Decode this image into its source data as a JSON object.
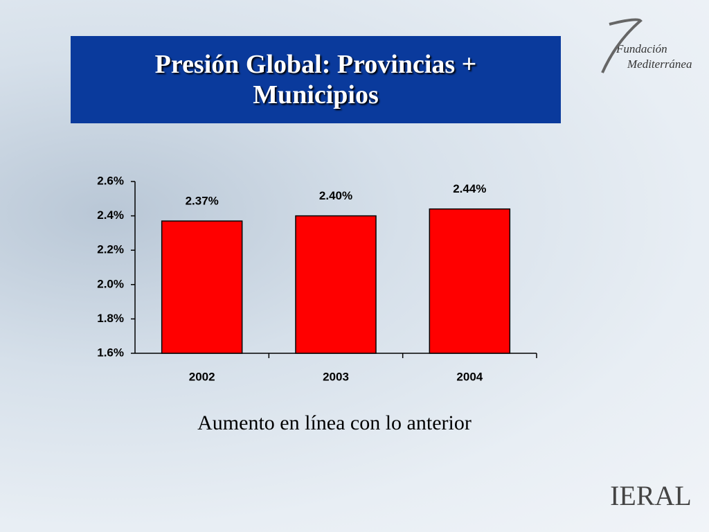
{
  "chart_data": {
    "type": "bar",
    "title": "Presión Global: Provincias + Municipios",
    "subtitle": "Aumento en línea con lo anterior",
    "categories": [
      "2002",
      "2003",
      "2004"
    ],
    "values": [
      2.37,
      2.4,
      2.44
    ],
    "value_labels": [
      "2.37%",
      "2.40%",
      "2.44%"
    ],
    "color": "#ff0000",
    "ylim": [
      1.6,
      2.6
    ],
    "yticks": [
      {
        "value": 1.6,
        "label": "1.6%"
      },
      {
        "value": 1.8,
        "label": "1.8%"
      },
      {
        "value": 2.0,
        "label": "2.0%"
      },
      {
        "value": 2.2,
        "label": "2.2%"
      },
      {
        "value": 2.4,
        "label": "2.4%"
      },
      {
        "value": 2.6,
        "label": "2.6%"
      }
    ],
    "grid": false
  },
  "branding": {
    "top_logo": [
      "Fundación",
      "Mediterránea"
    ],
    "bottom_logo": "IERAL"
  }
}
